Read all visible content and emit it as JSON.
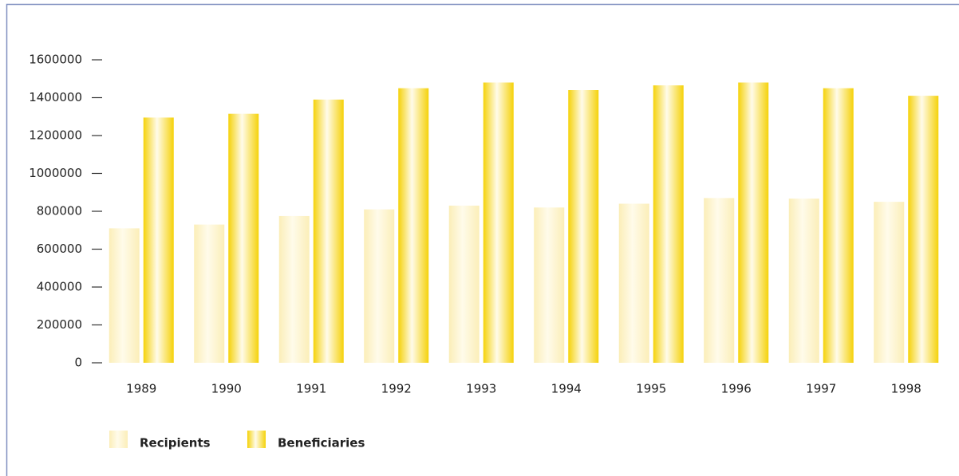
{
  "chart_data": {
    "type": "bar",
    "categories": [
      "1989",
      "1990",
      "1991",
      "1992",
      "1993",
      "1994",
      "1995",
      "1996",
      "1997",
      "1998"
    ],
    "series": [
      {
        "name": "Recipients",
        "color": "#fbeeb8",
        "values": [
          710000,
          730000,
          775000,
          810000,
          830000,
          820000,
          840000,
          870000,
          867000,
          850000
        ]
      },
      {
        "name": "Beneficiaries",
        "color": "#f5d20a",
        "values": [
          1295000,
          1315000,
          1390000,
          1450000,
          1480000,
          1440000,
          1465000,
          1480000,
          1450000,
          1410000
        ]
      }
    ],
    "ylim": [
      0,
      1600000
    ],
    "yticks": [
      0,
      200000,
      400000,
      600000,
      800000,
      1000000,
      1200000,
      1400000,
      1600000
    ],
    "legend": "bottom-left"
  }
}
